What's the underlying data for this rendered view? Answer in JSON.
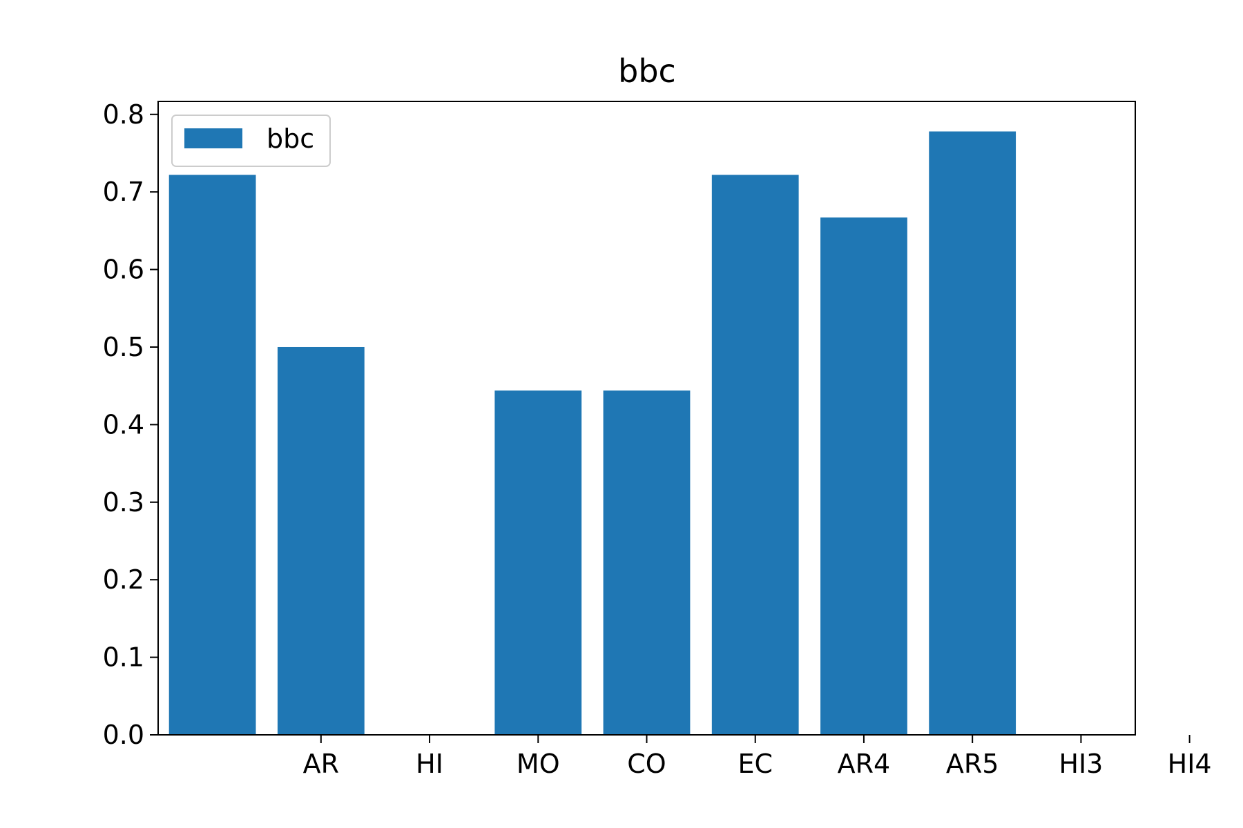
{
  "chart_data": {
    "type": "bar",
    "title": "bbc",
    "xlabel": "",
    "ylabel": "",
    "categories": [
      "AR",
      "HI",
      "MO",
      "CO",
      "EC",
      "AR4",
      "AR5",
      "HI3",
      "HI4"
    ],
    "series": [
      {
        "name": "bbc",
        "values": [
          0.722,
          0.5,
          0.0,
          0.444,
          0.444,
          0.722,
          0.667,
          0.778,
          0.0
        ]
      }
    ],
    "ylim": [
      0,
      0.8167
    ],
    "yticks": [
      0.0,
      0.1,
      0.2,
      0.3,
      0.4,
      0.5,
      0.6,
      0.7,
      0.8
    ],
    "ytick_labels": [
      "0.0",
      "0.1",
      "0.2",
      "0.3",
      "0.4",
      "0.5",
      "0.6",
      "0.7",
      "0.8"
    ],
    "grid": false,
    "legend_position": "top-left",
    "bar_color": "#1f77b4"
  }
}
